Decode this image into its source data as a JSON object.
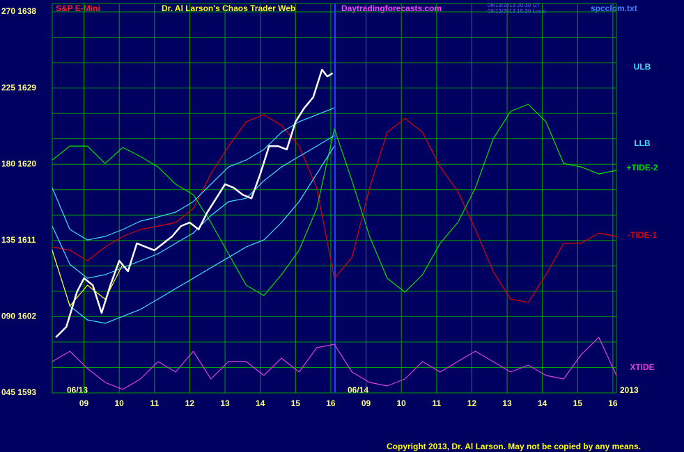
{
  "chart_data": {
    "type": "line",
    "instrument": "S&P E-Mini",
    "title": "Dr. Al Larson's Chaos Trader Web",
    "site": "Daytradingforecasts.com",
    "timestamps": [
      "06/13/2013 20:30 UT",
      "06/13/2013 15:30 Local"
    ],
    "file": "spcclom.txt",
    "copyright": "Copyright 2013, Dr. Al Larson. May not be copied by any means.",
    "date_labels": [
      "06/13",
      "06/14",
      "2013"
    ],
    "xlim": [
      8.1,
      24.1
    ],
    "xticks": [
      {
        "value": 9,
        "label": "09"
      },
      10,
      11,
      12,
      13,
      14,
      15,
      16,
      {
        "value": 17,
        "label": "09"
      },
      {
        "value": 18,
        "label": "10"
      },
      {
        "value": 19,
        "label": "11"
      },
      {
        "value": 20,
        "label": "12"
      },
      {
        "value": 21,
        "label": "13"
      },
      {
        "value": 22,
        "label": "14"
      },
      {
        "value": 23,
        "label": "15"
      },
      {
        "value": 24,
        "label": "16"
      }
    ],
    "day_break": 16.12,
    "ylim": [
      45,
      270
    ],
    "yticks": [
      {
        "value": 45,
        "label": "045 1593"
      },
      {
        "value": 90,
        "label": "090 1602"
      },
      {
        "value": 135,
        "label": "135 1611"
      },
      {
        "value": 180,
        "label": "180 1620"
      },
      {
        "value": 225,
        "label": "225 1629"
      },
      {
        "value": 270,
        "label": "270 1638"
      }
    ],
    "ygrid": [
      60,
      75,
      105,
      120,
      150,
      165,
      195,
      210,
      240,
      255
    ],
    "grid": true,
    "series": [
      {
        "color": "#ffffff",
        "x": [
          8.2,
          8.5,
          8.8,
          9,
          9.25,
          9.5,
          9.75,
          10,
          10.25,
          10.5,
          10.75,
          11,
          11.25,
          11.5,
          11.75,
          12,
          12.25,
          12.5,
          12.75,
          13,
          13.25,
          13.5,
          13.75,
          14,
          14.25,
          14.5,
          14.75,
          15,
          15.25,
          15.5,
          15.75,
          15.9,
          16.05
        ],
        "values": [
          77.8,
          84.0,
          104.5,
          112.7,
          108.6,
          92.2,
          108.6,
          123.0,
          116.8,
          133.3,
          131.2,
          129.2,
          133.3,
          137.4,
          143.5,
          145.6,
          141.5,
          151.7,
          159.9,
          168.2,
          166.1,
          162.0,
          159.9,
          174.3,
          190.7,
          190.7,
          188.7,
          205.1,
          213.3,
          219.5,
          235.9,
          231.8,
          233.8
        ]
      },
      {
        "color": "#ffff00",
        "x": [
          8.1,
          8.6,
          9.1,
          9.6,
          10.1
        ],
        "values": [
          129.2,
          96.3,
          108.6,
          100.4,
          120.9
        ]
      },
      {
        "name": "ULB",
        "color": "#40e0ff",
        "x": [
          8.1,
          8.6,
          9.1,
          9.6,
          10.1,
          10.6,
          11.1,
          11.6,
          12.1,
          12.6,
          13.1,
          13.6,
          14.1,
          14.6,
          15.1,
          15.6,
          16.1
        ],
        "values": [
          166.1,
          141.5,
          135.3,
          137.4,
          141.5,
          146.4,
          148.9,
          151.7,
          157.9,
          168.2,
          178.4,
          182.5,
          188.7,
          198.9,
          205.1,
          209.2,
          213.3
        ]
      },
      {
        "color": "#40e0ff",
        "x": [
          8.1,
          8.6,
          9.1,
          9.6,
          10.1,
          10.6,
          11.1,
          11.6,
          12.1,
          12.6,
          13.1,
          13.6,
          14.1,
          14.6,
          15.1,
          15.6,
          16.1
        ],
        "values": [
          143.5,
          120.9,
          112.7,
          114.8,
          118.9,
          123.0,
          127.1,
          133.3,
          139.4,
          149.7,
          157.9,
          159.9,
          170.2,
          178.4,
          184.6,
          190.7,
          196.9
        ]
      },
      {
        "name": "LLB",
        "color": "#40e0ff",
        "x": [
          8.1,
          8.6,
          9.1,
          9.6,
          10.1,
          10.6,
          11.1,
          11.6,
          12.1,
          12.6,
          13.1,
          13.6,
          14.1,
          14.6,
          15.1,
          15.6,
          16.1
        ],
        "values": [
          129.2,
          96.3,
          88.1,
          86.1,
          90.2,
          94.3,
          100.4,
          106.6,
          112.7,
          118.9,
          125.0,
          131.2,
          135.3,
          145.6,
          157.9,
          174.3,
          190.7
        ]
      },
      {
        "name": "+TIDE-2",
        "color": "#00e000",
        "x": [
          8.1,
          8.6,
          9.1,
          9.6,
          10.1,
          10.6,
          11.1,
          11.6,
          12.1,
          12.6,
          13.1,
          13.6,
          14.1,
          14.6,
          15.1,
          15.6,
          16.1,
          16.6,
          17.1,
          17.6,
          18.1,
          18.6,
          19.1,
          19.6,
          20.1,
          20.6,
          21.1,
          21.6,
          22.1,
          22.6,
          23.1,
          23.6,
          24.1
        ],
        "values": [
          182.5,
          190.7,
          190.7,
          180.5,
          189.9,
          184.6,
          178.4,
          168.2,
          162.0,
          145.6,
          127.1,
          108.6,
          102.5,
          114.8,
          129.2,
          153.8,
          201.0,
          170.2,
          137.4,
          112.7,
          104.5,
          114.8,
          133.3,
          145.6,
          166.1,
          194.8,
          211.3,
          215.4,
          205.1,
          180.5,
          178.4,
          174.3,
          176.4
        ]
      },
      {
        "name": "-TIDE-1",
        "color": "#e00000",
        "x": [
          8.1,
          8.6,
          9.1,
          9.6,
          10.1,
          10.6,
          11.1,
          11.6,
          12.1,
          12.6,
          13.1,
          13.6,
          14.1,
          14.6,
          15.1,
          15.6,
          16.1,
          16.6,
          17.1,
          17.6,
          18.1,
          18.6,
          19.1,
          19.6,
          20.1,
          20.6,
          21.1,
          21.6,
          22.1,
          22.6,
          23.1,
          23.6,
          24.1
        ],
        "values": [
          131.2,
          129.2,
          123.0,
          131.2,
          137.4,
          141.5,
          143.5,
          145.6,
          153.8,
          174.3,
          190.7,
          205.1,
          209.2,
          203.0,
          190.7,
          166.1,
          112.7,
          125.0,
          166.1,
          198.9,
          207.1,
          198.9,
          178.4,
          164.0,
          141.5,
          116.8,
          100.4,
          98.4,
          114.8,
          133.3,
          133.3,
          139.4,
          137.4
        ]
      },
      {
        "name": "XTIDE",
        "color": "#e040e0",
        "x": [
          8.1,
          8.6,
          9.1,
          9.6,
          10.1,
          10.6,
          11.1,
          11.6,
          12.1,
          12.6,
          13.1,
          13.6,
          14.1,
          14.6,
          15.1,
          15.6,
          16.1,
          16.6,
          17.1,
          17.6,
          18.1,
          18.6,
          19.1,
          19.6,
          20.1,
          20.6,
          21.1,
          21.6,
          22.1,
          22.6,
          23.1,
          23.6,
          24.1
        ],
        "values": [
          63.5,
          69.6,
          59.4,
          51.2,
          47.1,
          53.2,
          63.5,
          57.3,
          69.6,
          53.2,
          63.5,
          63.5,
          55.3,
          65.5,
          57.3,
          71.7,
          73.7,
          57.3,
          51.2,
          49.1,
          53.2,
          63.5,
          57.3,
          63.5,
          69.6,
          63.5,
          57.3,
          61.4,
          55.3,
          53.2,
          67.6,
          77.8,
          55.3
        ]
      }
    ]
  }
}
